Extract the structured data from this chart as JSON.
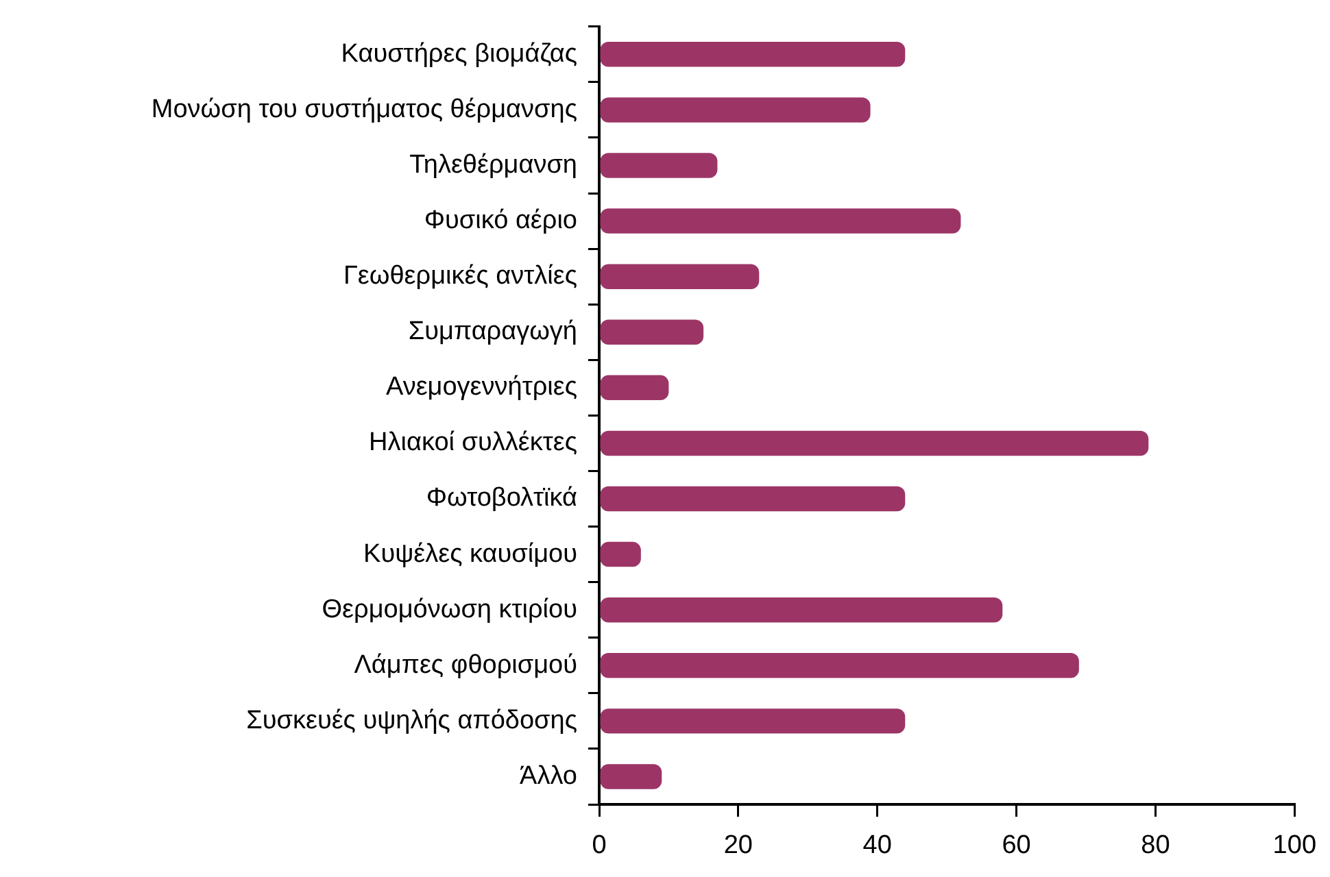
{
  "chart_data": {
    "type": "bar",
    "orientation": "horizontal",
    "categories": [
      "Καυστήρες βιομάζας",
      "Μονώση του συστήματος θέρμανσης",
      "Τηλεθέρμανση",
      "Φυσικό αέριο",
      "Γεωθερμικές αντλίες",
      "Συμπαραγωγή",
      "Ανεμογεννήτριες",
      "Ηλιακοί συλλέκτες",
      "Φωτοβολτϊκά",
      "Κυψέλες καυσίμου",
      "Θερμομόνωση κτιρίου",
      "Λάμπες φθορισμού",
      "Συσκευές υψηλής απόδοσης",
      "Άλλο"
    ],
    "values": [
      44,
      39,
      17,
      52,
      23,
      15,
      10,
      79,
      44,
      6,
      58,
      69,
      44,
      9
    ],
    "color": "#9c3566",
    "xlim": [
      0,
      100
    ],
    "xticks": [
      0,
      20,
      40,
      60,
      80,
      100
    ]
  }
}
